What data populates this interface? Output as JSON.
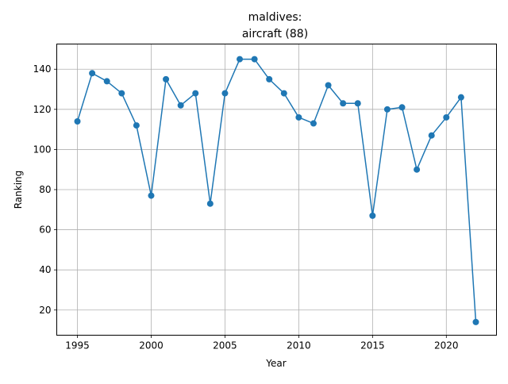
{
  "chart_data": {
    "type": "line",
    "title": "maldives:\naircraft (88)",
    "title_lines": [
      "maldives:",
      "aircraft (88)"
    ],
    "xlabel": "Year",
    "ylabel": "Ranking",
    "xlim": [
      1993.6,
      2023.4
    ],
    "ylim": [
      7.45,
      152.55
    ],
    "xticks": [
      1995,
      2000,
      2005,
      2010,
      2015,
      2020
    ],
    "yticks": [
      20,
      40,
      60,
      80,
      100,
      120,
      140
    ],
    "grid": true,
    "series": [
      {
        "color": "#1f77b4",
        "marker": "circle",
        "x": [
          1995,
          1996,
          1997,
          1998,
          1999,
          2000,
          2001,
          2002,
          2003,
          2004,
          2005,
          2006,
          2007,
          2008,
          2009,
          2010,
          2011,
          2012,
          2013,
          2014,
          2015,
          2016,
          2017,
          2018,
          2019,
          2020,
          2021,
          2022
        ],
        "y": [
          114,
          138,
          134,
          128,
          112,
          77,
          135,
          122,
          128,
          73,
          128,
          145,
          145,
          135,
          128,
          116,
          113,
          132,
          123,
          123,
          67,
          120,
          121,
          90,
          107,
          116,
          126,
          14
        ]
      }
    ]
  }
}
